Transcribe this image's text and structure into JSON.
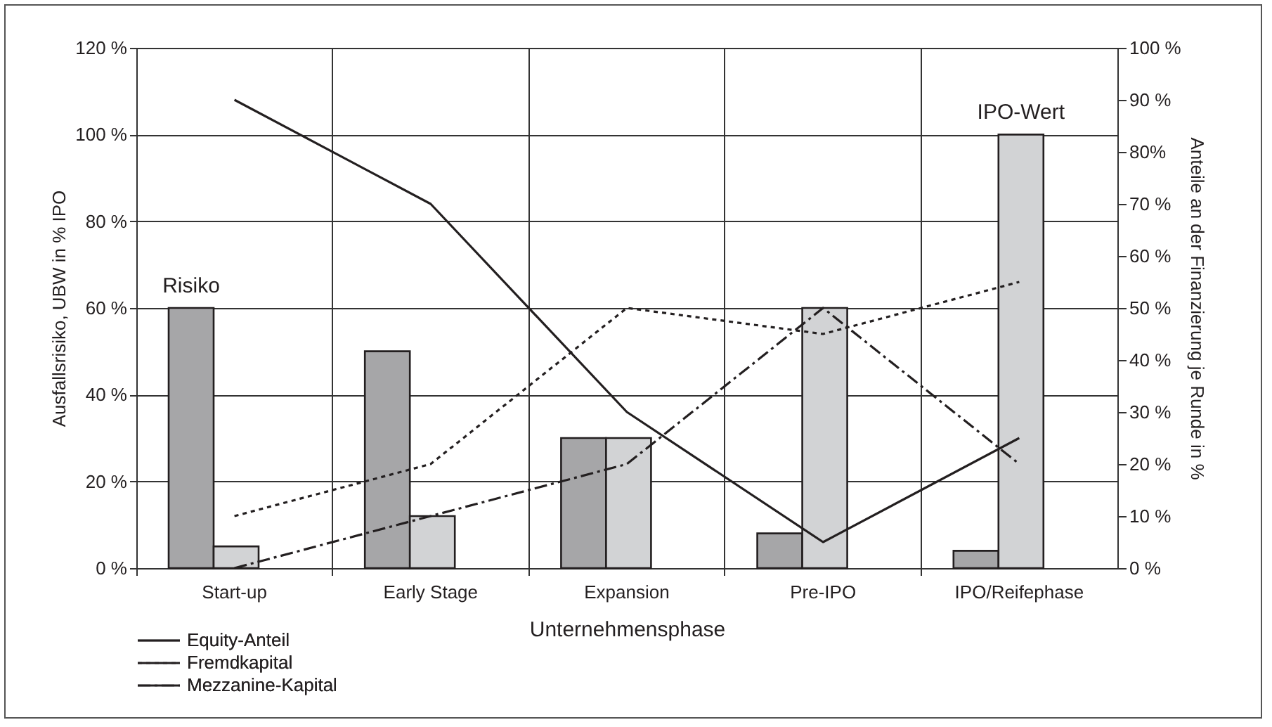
{
  "chart_data": {
    "type": "bar",
    "xlabel": "Unternehmensphase",
    "ylabel": "Ausfallsrisiko, UBW in % IPO",
    "y2label": "Anteile an der Finanzierung je Runde in %",
    "categories": [
      "Start-up",
      "Early Stage",
      "Expansion",
      "Pre-IPO",
      "IPO/Reifephase"
    ],
    "series": [
      {
        "name": "Risiko",
        "color": "#a6a6a8",
        "values": [
          60,
          50,
          30,
          8,
          4
        ]
      },
      {
        "name": "IPO-Wert",
        "color": "#d2d3d5",
        "values": [
          5,
          12,
          30,
          60,
          100
        ]
      },
      {
        "name": "Equity-Anteil",
        "type": "line",
        "axis": "y2",
        "color": "#231f20",
        "line_style": "solid",
        "values": [
          90,
          70,
          30,
          5,
          25
        ]
      },
      {
        "name": "Fremdkapital",
        "type": "line",
        "axis": "y2",
        "color": "#231f20",
        "line_style": "dotted",
        "values": [
          10,
          20,
          50,
          45,
          55
        ]
      },
      {
        "name": "Mezzanine-Kapital",
        "type": "line",
        "axis": "y2",
        "color": "#231f20",
        "line_style": "dashdot",
        "values": [
          0,
          10,
          20,
          50,
          20
        ]
      }
    ],
    "ylim": [
      0,
      120
    ],
    "yticks": [
      {
        "value": 0,
        "label": "0 %"
      },
      {
        "value": 20,
        "label": "20 %"
      },
      {
        "value": 40,
        "label": "40 %"
      },
      {
        "value": 60,
        "label": "60 %"
      },
      {
        "value": 80,
        "label": "80 %"
      },
      {
        "value": 100,
        "label": "100 %"
      },
      {
        "value": 120,
        "label": "120 %"
      }
    ],
    "y2lim": [
      0,
      100
    ],
    "y2ticks": [
      {
        "value": 0,
        "label": "0 %"
      },
      {
        "value": 10,
        "label": "10 %"
      },
      {
        "value": 20,
        "label": "20 %"
      },
      {
        "value": 30,
        "label": "30 %"
      },
      {
        "value": 40,
        "label": "40 %"
      },
      {
        "value": 50,
        "label": "50 %"
      },
      {
        "value": 60,
        "label": "60 %"
      },
      {
        "value": 70,
        "label": "70 %"
      },
      {
        "value": 80,
        "label": "80%"
      },
      {
        "value": 90,
        "label": "90 %"
      },
      {
        "value": 100,
        "label": "100 %"
      }
    ],
    "grid": true,
    "legend": "bottom left"
  }
}
